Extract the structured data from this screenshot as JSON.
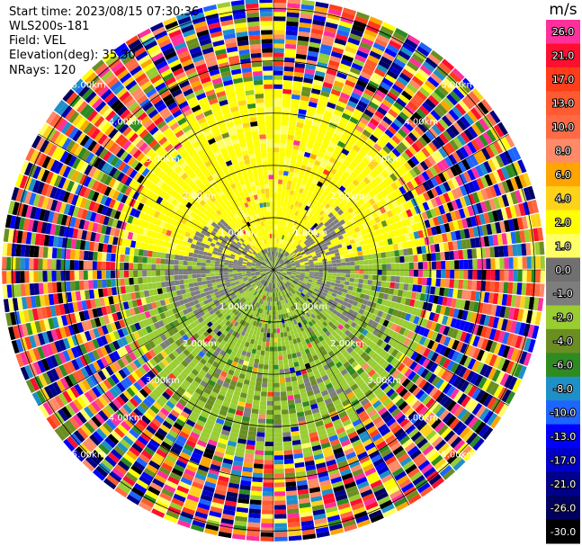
{
  "header": {
    "start_time": "Start time: 2023/08/15 07:30:36",
    "instrument": "WLS200s-181",
    "field": "Field: VEL",
    "elevation": "Elevation(deg): 35.30",
    "nrays": "NRays: 120"
  },
  "chart_data": {
    "type": "heatmap",
    "projection": "polar-ppi",
    "nrays": 120,
    "range_rings": [
      {
        "label": "1.00km",
        "km": 1.0
      },
      {
        "label": "2.00km",
        "km": 2.0
      },
      {
        "label": "3.00km",
        "km": 3.0
      },
      {
        "label": "4.00km",
        "km": 4.0
      },
      {
        "label": "5.00km",
        "km": 5.0
      }
    ],
    "max_range_km": 5.2,
    "colorbar": {
      "unit": "m/s",
      "bins": [
        {
          "label": "26.0",
          "color": "#ff2f9b"
        },
        {
          "label": "21.0",
          "color": "#ff0f2f"
        },
        {
          "label": "17.0",
          "color": "#ff3d1a"
        },
        {
          "label": "13.0",
          "color": "#ff5a30"
        },
        {
          "label": "10.0",
          "color": "#ff6a45"
        },
        {
          "label": "8.0",
          "color": "#ff8a68"
        },
        {
          "label": "6.0",
          "color": "#ffa500"
        },
        {
          "label": "4.0",
          "color": "#ffd21a"
        },
        {
          "label": "2.0",
          "color": "#ffff00"
        },
        {
          "label": "1.0",
          "color": "#ffff66"
        },
        {
          "label": "0.0",
          "color": "#707070"
        },
        {
          "label": "-1.0",
          "color": "#7d7d7d"
        },
        {
          "label": "-2.0",
          "color": "#9acd32"
        },
        {
          "label": "-4.0",
          "color": "#6b8e23"
        },
        {
          "label": "-6.0",
          "color": "#2e8b22"
        },
        {
          "label": "-8.0",
          "color": "#1e90c8"
        },
        {
          "label": "-10.0",
          "color": "#1e64ff"
        },
        {
          "label": "-13.0",
          "color": "#0000ff"
        },
        {
          "label": "-17.0",
          "color": "#0000c8"
        },
        {
          "label": "-21.0",
          "color": "#00008b"
        },
        {
          "label": "-26.0",
          "color": "#000060"
        },
        {
          "label": "-30.0",
          "color": "#000000"
        }
      ]
    },
    "field_description": "Radial velocity PPI: near-field toward-radar (grey/olive) in the south, away-from-radar (yellow) in the north, noise-dominated multicolour beyond about 3 km."
  }
}
